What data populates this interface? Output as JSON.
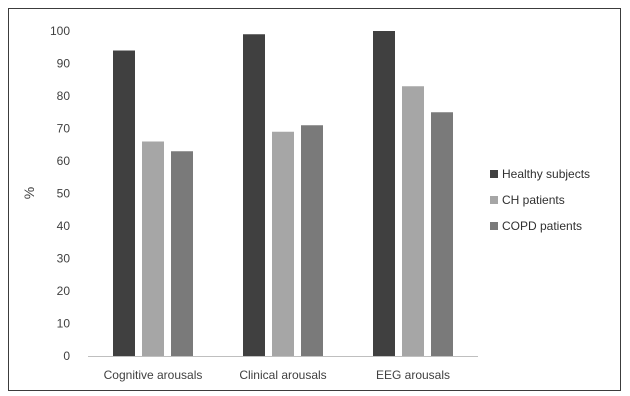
{
  "chart_data": {
    "type": "bar",
    "categories": [
      "Cognitive arousals",
      "Clinical arousals",
      "EEG arousals"
    ],
    "series": [
      {
        "name": "Healthy subjects",
        "values": [
          94,
          99,
          100
        ],
        "color": "#404040"
      },
      {
        "name": "CH patients",
        "values": [
          66,
          69,
          83
        ],
        "color": "#a6a6a6"
      },
      {
        "name": "COPD patients",
        "values": [
          63,
          71,
          75
        ],
        "color": "#7a7a7a"
      }
    ],
    "title": "",
    "xlabel": "",
    "ylabel": "%",
    "ylim": [
      0,
      100
    ],
    "yticks": [
      0,
      10,
      20,
      30,
      40,
      50,
      60,
      70,
      80,
      90,
      100
    ],
    "grid": false,
    "legend": "right"
  }
}
